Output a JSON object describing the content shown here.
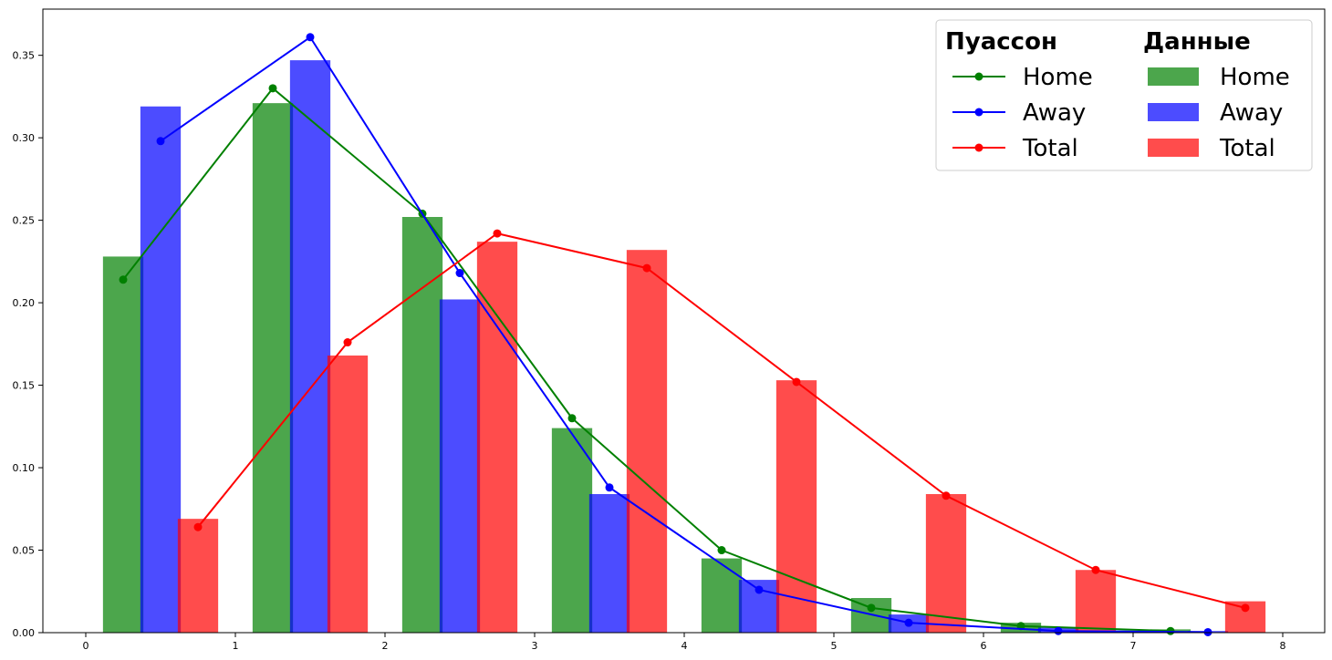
{
  "chart_data": {
    "type": "bar",
    "title": "",
    "xlabel": "",
    "ylabel": "",
    "xlim": [
      0,
      8
    ],
    "ylim": [
      0,
      0.378
    ],
    "x_ticks": [
      "0",
      "1",
      "2",
      "3",
      "4",
      "5",
      "6",
      "7",
      "8"
    ],
    "y_ticks": [
      "0.00",
      "0.05",
      "0.10",
      "0.15",
      "0.20",
      "0.25",
      "0.30",
      "0.35"
    ],
    "grid": false,
    "legend_position": "top-right",
    "legend_titles": [
      "Пуассон",
      "Данные"
    ],
    "bar_width": 0.27,
    "bar_series": [
      {
        "name": "Home",
        "color": "#008000",
        "x": [
          0.25,
          1.25,
          2.25,
          3.25,
          4.25,
          5.25,
          6.25,
          7.25
        ],
        "values": [
          0.228,
          0.321,
          0.252,
          0.124,
          0.045,
          0.021,
          0.006,
          0.002
        ]
      },
      {
        "name": "Away",
        "color": "#0000ff",
        "x": [
          0.5,
          1.5,
          2.5,
          3.5,
          4.5,
          5.5,
          6.5,
          7.5
        ],
        "values": [
          0.319,
          0.347,
          0.202,
          0.084,
          0.032,
          0.011,
          0.003,
          0.001
        ]
      },
      {
        "name": "Total",
        "color": "#ff0000",
        "x": [
          0.75,
          1.75,
          2.75,
          3.75,
          4.75,
          5.75,
          6.75,
          7.75
        ],
        "values": [
          0.069,
          0.168,
          0.237,
          0.232,
          0.153,
          0.084,
          0.038,
          0.019
        ]
      }
    ],
    "line_series": [
      {
        "name": "Home",
        "color": "#008000",
        "x": [
          0.25,
          1.25,
          2.25,
          3.25,
          4.25,
          5.25,
          6.25,
          7.25
        ],
        "values": [
          0.214,
          0.33,
          0.254,
          0.13,
          0.05,
          0.015,
          0.004,
          0.001
        ]
      },
      {
        "name": "Away",
        "color": "#0000ff",
        "x": [
          0.5,
          1.5,
          2.5,
          3.5,
          4.5,
          5.5,
          6.5,
          7.5
        ],
        "values": [
          0.298,
          0.361,
          0.218,
          0.088,
          0.026,
          0.006,
          0.001,
          0.0003
        ]
      },
      {
        "name": "Total",
        "color": "#ff0000",
        "x": [
          0.75,
          1.75,
          2.75,
          3.75,
          4.75,
          5.75,
          6.75,
          7.75
        ],
        "values": [
          0.064,
          0.176,
          0.242,
          0.221,
          0.152,
          0.083,
          0.038,
          0.015
        ]
      }
    ]
  }
}
